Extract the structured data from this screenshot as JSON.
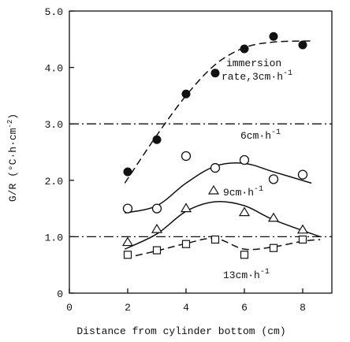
{
  "chart_data": {
    "type": "scatter",
    "x_label": "Distance from cylinder bottom (cm)",
    "y_label": [
      "G/R (°C·h·cm",
      "-2",
      ")"
    ],
    "xlim": [
      0,
      9
    ],
    "ylim": [
      0,
      5
    ],
    "xticks": [
      0,
      2,
      4,
      6,
      8
    ],
    "yticks": [
      0,
      {
        "value": 1,
        "label": "1.0"
      },
      {
        "value": 2,
        "label": "2.0"
      },
      {
        "value": 3,
        "label": "3.0"
      },
      {
        "value": 4,
        "label": "4.0"
      },
      {
        "value": 5,
        "label": "5.0"
      }
    ],
    "reference_lines": [
      3,
      1
    ],
    "series": [
      {
        "marker": "filled-circle",
        "color": "#111111",
        "x": [
          2,
          3,
          4,
          5,
          6,
          7,
          8
        ],
        "values": [
          2.15,
          2.72,
          3.53,
          3.9,
          4.33,
          4.55,
          4.4
        ],
        "fit": {
          "dash": true,
          "x": [
            1.9,
            3,
            4,
            5,
            6,
            7,
            8.3
          ],
          "values": [
            1.95,
            2.8,
            3.5,
            4.05,
            4.35,
            4.45,
            4.47
          ]
        }
      },
      {
        "marker": "circle",
        "color": "#111111",
        "x": [
          2,
          3,
          4,
          5,
          6,
          7,
          8
        ],
        "values": [
          1.5,
          1.5,
          2.43,
          2.22,
          2.36,
          2.02,
          2.1
        ],
        "fit": {
          "dash": false,
          "x": [
            1.9,
            3,
            4,
            5,
            6,
            7,
            8.3
          ],
          "values": [
            1.42,
            1.55,
            1.95,
            2.25,
            2.3,
            2.15,
            1.95
          ]
        }
      },
      {
        "marker": "triangle",
        "color": "#111111",
        "x": [
          2,
          3,
          4,
          6,
          7,
          8
        ],
        "values": [
          0.9,
          1.13,
          1.5,
          1.43,
          1.33,
          1.12
        ],
        "fit": {
          "dash": false,
          "x": [
            1.9,
            3,
            4,
            5,
            6,
            7,
            8.6
          ],
          "values": [
            0.78,
            1.05,
            1.45,
            1.62,
            1.55,
            1.3,
            1.0
          ]
        }
      },
      {
        "marker": "square",
        "color": "#111111",
        "x": [
          2,
          3,
          4,
          5,
          6,
          7,
          8
        ],
        "values": [
          0.68,
          0.76,
          0.87,
          0.95,
          0.68,
          0.8,
          0.95
        ],
        "fit": {
          "dash": true,
          "x": [
            1.9,
            3,
            4,
            5,
            6,
            7,
            8,
            8.6
          ],
          "values": [
            0.62,
            0.75,
            0.88,
            0.97,
            0.78,
            0.82,
            0.92,
            0.95
          ]
        }
      }
    ],
    "annotations": [
      {
        "text": "immersion"
      },
      {
        "text": "rate,3cm·h",
        "sup": "-1"
      },
      {
        "text": "6cm·h",
        "sup": "-1"
      },
      {
        "text": "9cm·h",
        "sup": "-1"
      },
      {
        "text": "13cm·h",
        "sup": "-1"
      }
    ]
  }
}
